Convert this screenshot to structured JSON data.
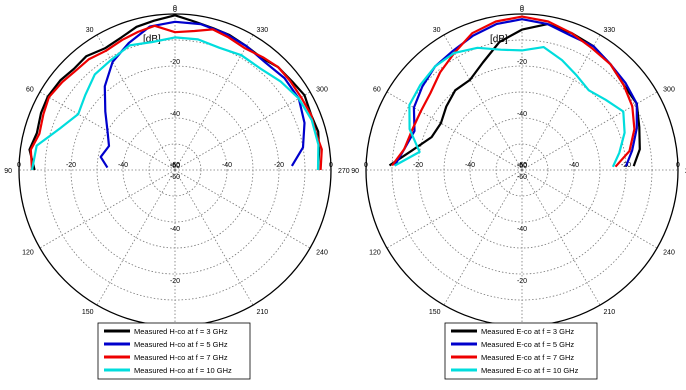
{
  "chart_data": [
    {
      "type": "polar",
      "title": "",
      "radial_unit_label": "[dB]",
      "radial_range": [
        -60,
        0
      ],
      "angle_direction": "counterclockwise",
      "angle_zero": "top",
      "grid": true,
      "angle_tick_labels": [
        "0",
        "30",
        "60",
        "90",
        "120",
        "150",
        "180",
        "210",
        "240",
        "270",
        "300",
        "330"
      ],
      "radial_tick_labels": [
        "0",
        "-20",
        "-40",
        "-60"
      ],
      "legend_placement": "bottom-center",
      "series": [
        {
          "name": "Measured H-co  at f = 3 GHz",
          "color": "#000000",
          "points": [
            [
              0,
              -0.5
            ],
            [
              8,
              -2
            ],
            [
              15,
              -3
            ],
            [
              22,
              -5
            ],
            [
              30,
              -6
            ],
            [
              38,
              -4.5
            ],
            [
              45,
              -5
            ],
            [
              52,
              -4
            ],
            [
              60,
              -3.5
            ],
            [
              67,
              -4
            ],
            [
              75,
              -5
            ],
            [
              82,
              -3.5
            ],
            [
              90,
              -6
            ],
            [
              270,
              -5
            ],
            [
              278,
              -4
            ],
            [
              285,
              -3
            ],
            [
              292,
              -3.5
            ],
            [
              300,
              -2.5
            ],
            [
              307,
              -3.5
            ],
            [
              315,
              -4
            ],
            [
              322,
              -5.5
            ],
            [
              330,
              -5
            ],
            [
              338,
              -4
            ],
            [
              345,
              -3.5
            ],
            [
              352,
              -2.5
            ]
          ]
        },
        {
          "name": "Measured H-co  at f = 5 GHz",
          "color": "#0000cc",
          "points": [
            [
              0,
              -3
            ],
            [
              10,
              -4
            ],
            [
              20,
              -8
            ],
            [
              30,
              -12
            ],
            [
              40,
              -18
            ],
            [
              50,
              -25
            ],
            [
              60,
              -30
            ],
            [
              70,
              -33
            ],
            [
              80,
              -31
            ],
            [
              88,
              -34
            ],
            [
              272,
              -15
            ],
            [
              280,
              -10
            ],
            [
              290,
              -7
            ],
            [
              300,
              -5
            ],
            [
              310,
              -5
            ],
            [
              320,
              -6
            ],
            [
              330,
              -5
            ],
            [
              340,
              -4
            ],
            [
              350,
              -3
            ]
          ]
        },
        {
          "name": "Measured H-co  at f = 7 GHz",
          "color": "#ee0000",
          "points": [
            [
              0,
              -7
            ],
            [
              8,
              -4
            ],
            [
              15,
              -5
            ],
            [
              22,
              -6
            ],
            [
              30,
              -7
            ],
            [
              38,
              -6
            ],
            [
              45,
              -6
            ],
            [
              52,
              -5
            ],
            [
              60,
              -4
            ],
            [
              67,
              -5
            ],
            [
              75,
              -6
            ],
            [
              82,
              -4
            ],
            [
              90,
              -5
            ],
            [
              270,
              -4
            ],
            [
              278,
              -3
            ],
            [
              285,
              -4
            ],
            [
              292,
              -3.5
            ],
            [
              300,
              -4
            ],
            [
              308,
              -4
            ],
            [
              315,
              -4
            ],
            [
              322,
              -5
            ],
            [
              330,
              -6
            ],
            [
              338,
              -5
            ],
            [
              345,
              -4
            ],
            [
              352,
              -6
            ]
          ]
        },
        {
          "name": "Measured H-co  at f = 10 GHz",
          "color": "#00dddd",
          "points": [
            [
              0,
              -9
            ],
            [
              10,
              -10
            ],
            [
              20,
              -9
            ],
            [
              30,
              -11
            ],
            [
              40,
              -12
            ],
            [
              50,
              -15
            ],
            [
              60,
              -17
            ],
            [
              70,
              -13
            ],
            [
              80,
              -6
            ],
            [
              90,
              -5
            ],
            [
              270,
              -5
            ],
            [
              280,
              -4
            ],
            [
              290,
              -4
            ],
            [
              300,
              -5
            ],
            [
              310,
              -7
            ],
            [
              320,
              -9
            ],
            [
              330,
              -9
            ],
            [
              340,
              -10
            ],
            [
              350,
              -9
            ]
          ]
        }
      ]
    },
    {
      "type": "polar",
      "title": "",
      "radial_unit_label": "[dB]",
      "radial_range": [
        -60,
        0
      ],
      "angle_direction": "counterclockwise",
      "angle_zero": "top",
      "grid": true,
      "angle_tick_labels": [
        "0",
        "30",
        "60",
        "90",
        "120",
        "150",
        "180",
        "210",
        "240",
        "270",
        "300",
        "330"
      ],
      "radial_tick_labels": [
        "0",
        "-20",
        "-40",
        "-60"
      ],
      "legend_placement": "bottom-center",
      "series": [
        {
          "name": "Measured E-co  at f = 3 GHz",
          "color": "#000000",
          "points": [
            [
              0,
              -6
            ],
            [
              10,
              -10
            ],
            [
              20,
              -16
            ],
            [
              30,
              -20
            ],
            [
              40,
              -20
            ],
            [
              50,
              -22
            ],
            [
              60,
              -24
            ],
            [
              70,
              -23
            ],
            [
              80,
              -17
            ],
            [
              88,
              -9
            ],
            [
              272,
              -17
            ],
            [
              280,
              -14
            ],
            [
              290,
              -12
            ],
            [
              300,
              -9
            ],
            [
              310,
              -9
            ],
            [
              320,
              -7
            ],
            [
              330,
              -5
            ],
            [
              340,
              -4
            ],
            [
              350,
              -3
            ]
          ]
        },
        {
          "name": "Measured E-co  at f = 5 GHz",
          "color": "#0000cc",
          "points": [
            [
              0,
              -2
            ],
            [
              10,
              -3
            ],
            [
              20,
              -5
            ],
            [
              30,
              -7
            ],
            [
              40,
              -8
            ],
            [
              50,
              -10
            ],
            [
              60,
              -12
            ],
            [
              70,
              -16
            ],
            [
              80,
              -14
            ],
            [
              88,
              -11
            ],
            [
              272,
              -20
            ],
            [
              280,
              -17
            ],
            [
              290,
              -13
            ],
            [
              300,
              -9
            ],
            [
              310,
              -8
            ],
            [
              320,
              -7
            ],
            [
              330,
              -5
            ],
            [
              340,
              -5
            ],
            [
              350,
              -3
            ]
          ]
        },
        {
          "name": "Measured E-co  at f = 7 GHz",
          "color": "#ee0000",
          "points": [
            [
              0,
              -1
            ],
            [
              10,
              -2
            ],
            [
              20,
              -4
            ],
            [
              30,
              -8
            ],
            [
              40,
              -11
            ],
            [
              50,
              -14
            ],
            [
              60,
              -15
            ],
            [
              70,
              -15
            ],
            [
              80,
              -14
            ],
            [
              88,
              -10
            ],
            [
              272,
              -24
            ],
            [
              280,
              -18
            ],
            [
              290,
              -14
            ],
            [
              300,
              -11
            ],
            [
              310,
              -9
            ],
            [
              320,
              -7
            ],
            [
              330,
              -6
            ],
            [
              340,
              -4
            ],
            [
              350,
              -2
            ]
          ]
        },
        {
          "name": "Measured E-co  at f = 10 GHz",
          "color": "#00dddd",
          "points": [
            [
              0,
              -14
            ],
            [
              10,
              -13
            ],
            [
              20,
              -10
            ],
            [
              30,
              -8
            ],
            [
              40,
              -8
            ],
            [
              50,
              -9
            ],
            [
              60,
              -10
            ],
            [
              70,
              -14
            ],
            [
              80,
              -20
            ],
            [
              88,
              -11
            ],
            [
              272,
              -25
            ],
            [
              280,
              -22
            ],
            [
              290,
              -18
            ],
            [
              300,
              -15
            ],
            [
              310,
              -18
            ],
            [
              320,
              -20
            ],
            [
              330,
              -18
            ],
            [
              340,
              -15
            ],
            [
              350,
              -12
            ]
          ]
        }
      ]
    }
  ]
}
